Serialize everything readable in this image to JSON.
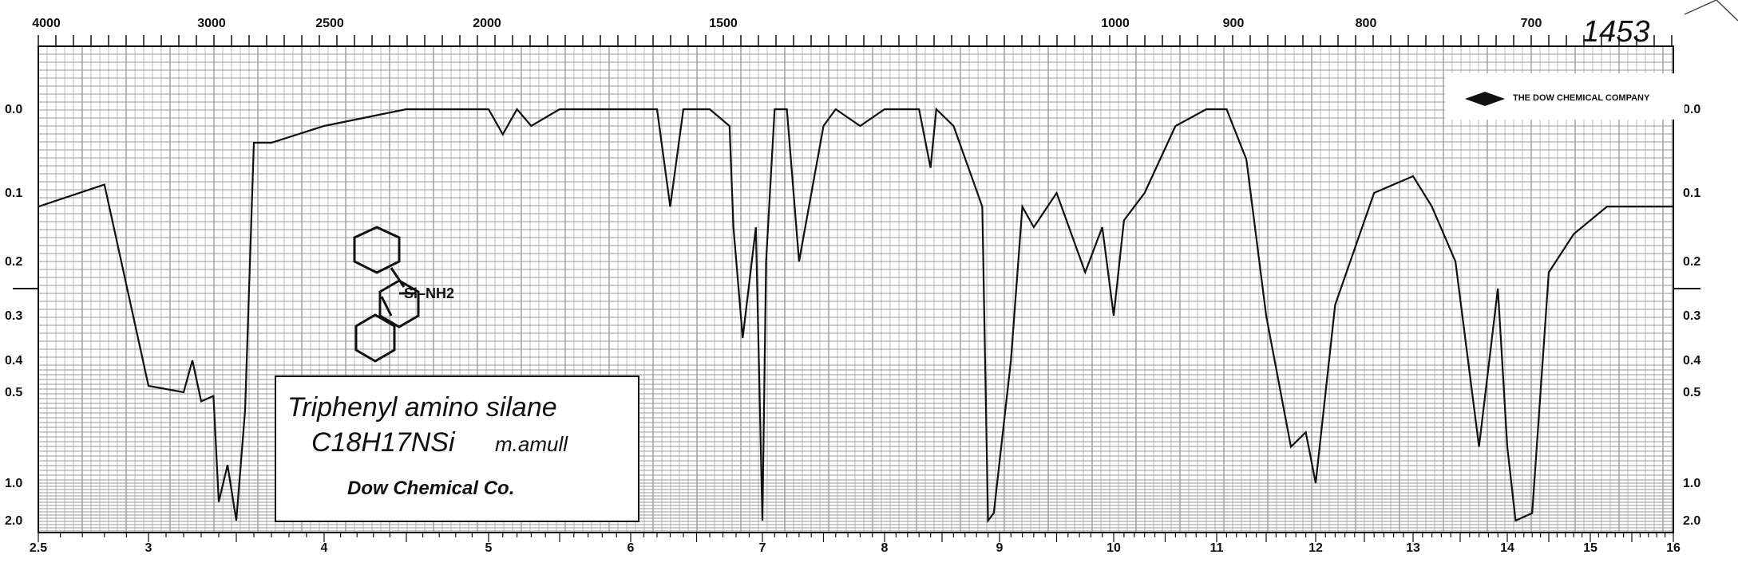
{
  "chart_data": {
    "type": "line",
    "title": "Triphenyl amino silane",
    "formula": "C18H17NSi",
    "annotation": "m.amull",
    "source": "Dow Chemical Co.",
    "spectrum_number": "1453",
    "company_stamp": "THE DOW CHEMICAL COMPANY",
    "top_axis_labels": [
      "4000",
      "3000",
      "2500",
      "2000",
      "1500",
      "1000",
      "900",
      "800",
      "700"
    ],
    "bottom_axis_labels": [
      "2.5",
      "3",
      "4",
      "5",
      "6",
      "7",
      "8",
      "9",
      "10",
      "11",
      "12",
      "13",
      "14",
      "15",
      "16"
    ],
    "left_axis_labels": [
      "0.0",
      "0.1",
      "0.2",
      "0.3",
      "0.4",
      "0.5",
      "1.0",
      "2.0"
    ],
    "right_axis_labels": [
      "0.0",
      "0.1",
      "0.2",
      "0.3",
      "0.4",
      "0.5",
      "1.0",
      "2.0"
    ],
    "xlim": [
      2.5,
      16
    ],
    "ylim": [
      0.0,
      2.0
    ],
    "series": [
      {
        "x": [
          2.5,
          2.8,
          3.0,
          3.2,
          3.25,
          3.3,
          3.37,
          3.4,
          3.45,
          3.5,
          3.55,
          3.6,
          3.7,
          4.0,
          4.5,
          5.0,
          5.1,
          5.2,
          5.3,
          5.5,
          5.7,
          6.0,
          6.2,
          6.3,
          6.4,
          6.6,
          6.75,
          6.78,
          6.85,
          6.95,
          7.0,
          7.03,
          7.1,
          7.2,
          7.3,
          7.5,
          7.6,
          7.8,
          8.0,
          8.3,
          8.4,
          8.45,
          8.6,
          8.85,
          8.9,
          8.95,
          9.1,
          9.2,
          9.3,
          9.5,
          9.75,
          9.9,
          10.0,
          10.1,
          10.3,
          10.6,
          10.9,
          11.1,
          11.3,
          11.5,
          11.75,
          11.9,
          12.0,
          12.2,
          12.6,
          13.0,
          13.2,
          13.45,
          13.7,
          13.9,
          14.0,
          14.1,
          14.3,
          14.5,
          14.8,
          15.2,
          16.0
        ],
        "y": [
          0.12,
          0.09,
          0.48,
          0.5,
          0.4,
          0.55,
          0.52,
          1.5,
          0.9,
          2.0,
          0.6,
          0.04,
          0.04,
          0.02,
          0.0,
          0.0,
          0.03,
          0.0,
          0.02,
          0.0,
          0.0,
          0.0,
          0.0,
          0.12,
          0.0,
          0.0,
          0.02,
          0.15,
          0.35,
          0.15,
          2.0,
          0.2,
          0.0,
          0.0,
          0.2,
          0.02,
          0.0,
          0.02,
          0.0,
          0.0,
          0.07,
          0.0,
          0.02,
          0.12,
          2.0,
          1.8,
          0.4,
          0.12,
          0.15,
          0.1,
          0.22,
          0.15,
          0.3,
          0.14,
          0.1,
          0.02,
          0.0,
          0.0,
          0.06,
          0.3,
          0.8,
          0.72,
          1.0,
          0.28,
          0.1,
          0.08,
          0.12,
          0.2,
          0.8,
          0.25,
          0.8,
          2.0,
          1.8,
          0.22,
          0.16,
          0.12,
          0.12
        ]
      }
    ]
  }
}
